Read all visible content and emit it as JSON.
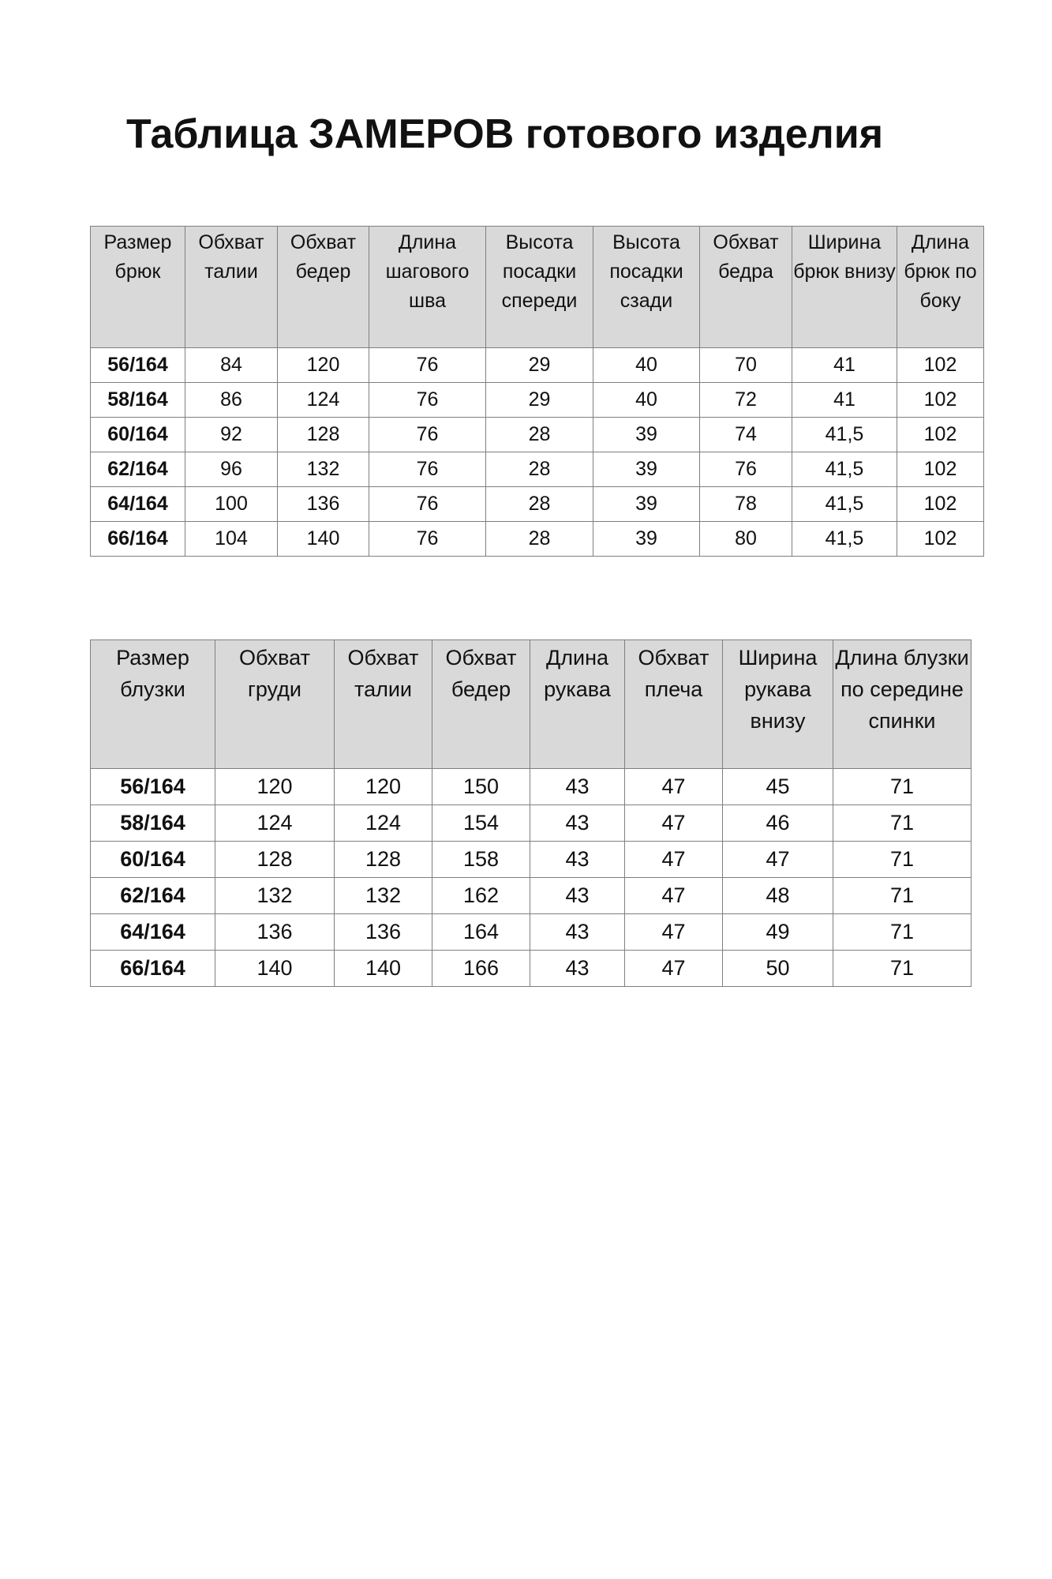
{
  "title": "Таблица ЗАМЕРОВ готового изделия",
  "trousers_table": {
    "headers": [
      "Размер брюк",
      "Обхват талии",
      "Обхват бедер",
      "Длина шагового шва",
      "Высота посадки спереди",
      "Высота посадки сзади",
      "Обхват бедра",
      "Ширина брюк внизу",
      "Длина брюк по боку"
    ],
    "rows": [
      [
        "56/164",
        "84",
        "120",
        "76",
        "29",
        "40",
        "70",
        "41",
        "102"
      ],
      [
        "58/164",
        "86",
        "124",
        "76",
        "29",
        "40",
        "72",
        "41",
        "102"
      ],
      [
        "60/164",
        "92",
        "128",
        "76",
        "28",
        "39",
        "74",
        "41,5",
        "102"
      ],
      [
        "62/164",
        "96",
        "132",
        "76",
        "28",
        "39",
        "76",
        "41,5",
        "102"
      ],
      [
        "64/164",
        "100",
        "136",
        "76",
        "28",
        "39",
        "78",
        "41,5",
        "102"
      ],
      [
        "66/164",
        "104",
        "140",
        "76",
        "28",
        "39",
        "80",
        "41,5",
        "102"
      ]
    ]
  },
  "blouse_table": {
    "headers": [
      "Размер блузки",
      "Обхват груди",
      "Обхват талии",
      "Обхват бедер",
      "Длина рукава",
      "Обхват плеча",
      "Ширина рукава внизу",
      "Длина блузки по середине спинки"
    ],
    "rows": [
      [
        "56/164",
        "120",
        "120",
        "150",
        "43",
        "47",
        "45",
        "71"
      ],
      [
        "58/164",
        "124",
        "124",
        "154",
        "43",
        "47",
        "46",
        "71"
      ],
      [
        "60/164",
        "128",
        "128",
        "158",
        "43",
        "47",
        "47",
        "71"
      ],
      [
        "62/164",
        "132",
        "132",
        "162",
        "43",
        "47",
        "48",
        "71"
      ],
      [
        "64/164",
        "136",
        "136",
        "164",
        "43",
        "47",
        "49",
        "71"
      ],
      [
        "66/164",
        "140",
        "140",
        "166",
        "43",
        "47",
        "50",
        "71"
      ]
    ]
  },
  "colors": {
    "header_bg": "#d9d9d9",
    "border": "#7f7f7f"
  }
}
